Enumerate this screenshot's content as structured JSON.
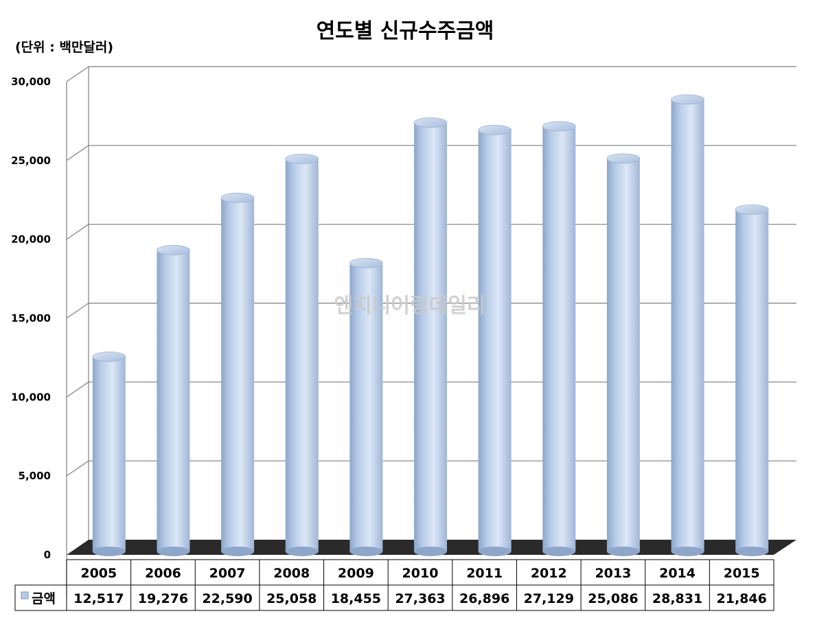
{
  "chart_data": {
    "type": "bar",
    "title": "연도별 신규수주금액",
    "unit_label": "(단위 : 백만달러)",
    "categories": [
      "2005",
      "2006",
      "2007",
      "2008",
      "2009",
      "2010",
      "2011",
      "2012",
      "2013",
      "2014",
      "2015"
    ],
    "series": [
      {
        "name": "금액",
        "values": [
          12517,
          19276,
          22590,
          25058,
          18455,
          27363,
          26896,
          27129,
          25086,
          28831,
          21846
        ]
      }
    ],
    "value_labels": [
      "12,517",
      "19,276",
      "22,590",
      "25,058",
      "18,455",
      "27,363",
      "26,896",
      "27,129",
      "25,086",
      "28,831",
      "21,846"
    ],
    "ylim": [
      0,
      30000
    ],
    "yticks": [
      0,
      5000,
      10000,
      15000,
      20000,
      25000,
      30000
    ],
    "ytick_labels": [
      "0",
      "5,000",
      "10,000",
      "15,000",
      "20,000",
      "25,000",
      "30,000"
    ],
    "grid": true,
    "legend": "data-table",
    "watermark": "엔지니어링데일리",
    "colors": {
      "bar": "#b7cbe8",
      "bar_light": "#dce7f6",
      "bar_dark": "#8da6c9",
      "floor": "#2a2a2a",
      "grid": "#7f7f7f"
    }
  }
}
